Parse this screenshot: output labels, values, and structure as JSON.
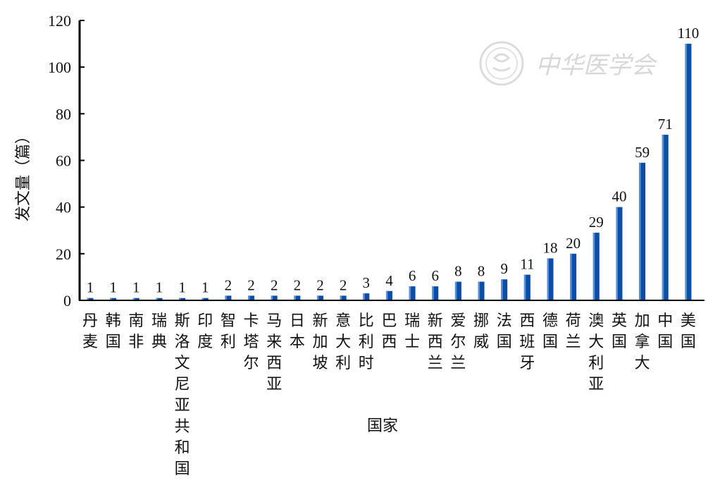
{
  "chart_data": {
    "type": "bar",
    "xlabel": "国家",
    "ylabel": "发文量（篇）",
    "ylim": [
      0,
      120
    ],
    "yticks": [
      0,
      20,
      40,
      60,
      80,
      100,
      120
    ],
    "grid": false,
    "legend": "none",
    "bar_color": "#0a4ea8",
    "categories": [
      "丹麦",
      "韩国",
      "南非",
      "瑞典",
      "斯洛文尼亚共和国",
      "印度",
      "智利",
      "卡塔尔",
      "马来西亚",
      "日本",
      "新加坡",
      "意大利",
      "比利时",
      "巴西",
      "瑞士",
      "新西兰",
      "爱尔兰",
      "挪威",
      "法国",
      "西班牙",
      "德国",
      "荷兰",
      "澳大利亚",
      "英国",
      "加拿大",
      "中国",
      "美国"
    ],
    "values": [
      1,
      1,
      1,
      1,
      1,
      1,
      2,
      2,
      2,
      2,
      2,
      2,
      3,
      4,
      6,
      6,
      8,
      8,
      9,
      11,
      18,
      20,
      29,
      40,
      59,
      71,
      110
    ]
  },
  "watermark": {
    "text": "中华医学会",
    "icon": "emblem-seal-icon"
  }
}
